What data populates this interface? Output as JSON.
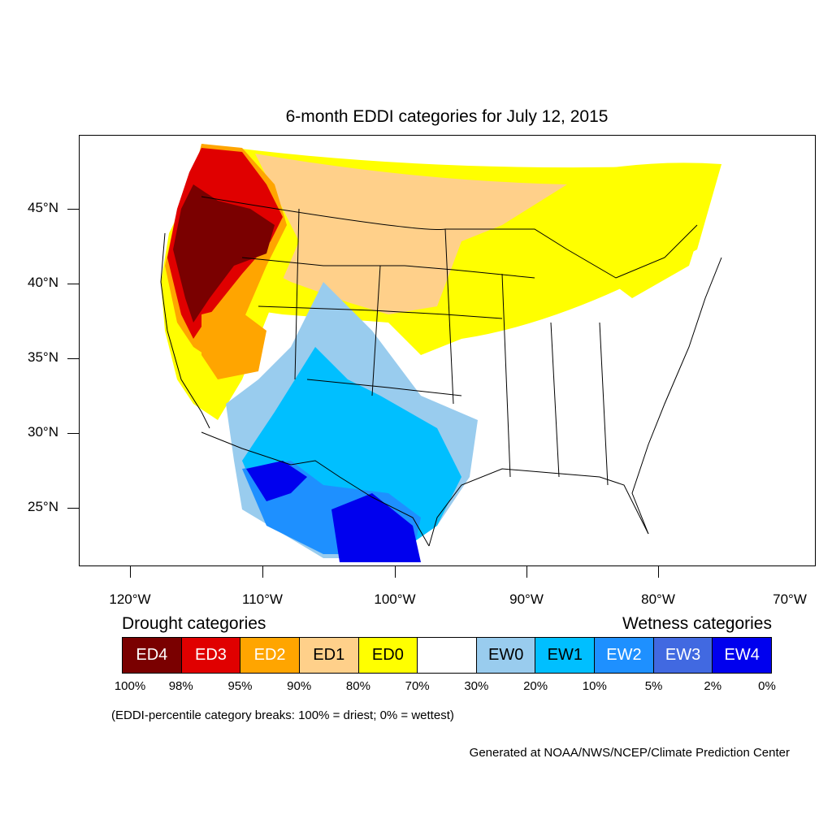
{
  "title": "6-month EDDI categories for July 12, 2015",
  "lat_labels": [
    "45°N",
    "40°N",
    "35°N",
    "30°N",
    "25°N"
  ],
  "lon_labels": [
    "120°W",
    "110°W",
    "100°W",
    "90°W",
    "80°W",
    "70°W"
  ],
  "legend": {
    "drought_heading": "Drought categories",
    "wetness_heading": "Wetness categories",
    "categories": [
      {
        "label": "ED4",
        "color": "#7a0000",
        "text_color": "#ffffff"
      },
      {
        "label": "ED3",
        "color": "#e00000",
        "text_color": "#ffffff"
      },
      {
        "label": "ED2",
        "color": "#ffa500",
        "text_color": "#ffffff"
      },
      {
        "label": "ED1",
        "color": "#ffd08a",
        "text_color": "#000000"
      },
      {
        "label": "ED0",
        "color": "#ffff00",
        "text_color": "#000000"
      },
      {
        "label": "",
        "color": "#ffffff",
        "text_color": "#000000"
      },
      {
        "label": "EW0",
        "color": "#99ccee",
        "text_color": "#000000"
      },
      {
        "label": "EW1",
        "color": "#00bfff",
        "text_color": "#000000"
      },
      {
        "label": "EW2",
        "color": "#1e90ff",
        "text_color": "#ffffff"
      },
      {
        "label": "EW3",
        "color": "#4169e1",
        "text_color": "#ffffff"
      },
      {
        "label": "EW4",
        "color": "#0000ee",
        "text_color": "#ffffff"
      }
    ],
    "breaks": [
      "100%",
      "98%",
      "95%",
      "90%",
      "80%",
      "70%",
      "30%",
      "20%",
      "10%",
      "5%",
      "2%",
      "0%"
    ]
  },
  "note": "(EDDI-percentile category breaks: 100% = driest; 0% = wettest)",
  "credit": "Generated at NOAA/NWS/NCEP/Climate Prediction Center"
}
